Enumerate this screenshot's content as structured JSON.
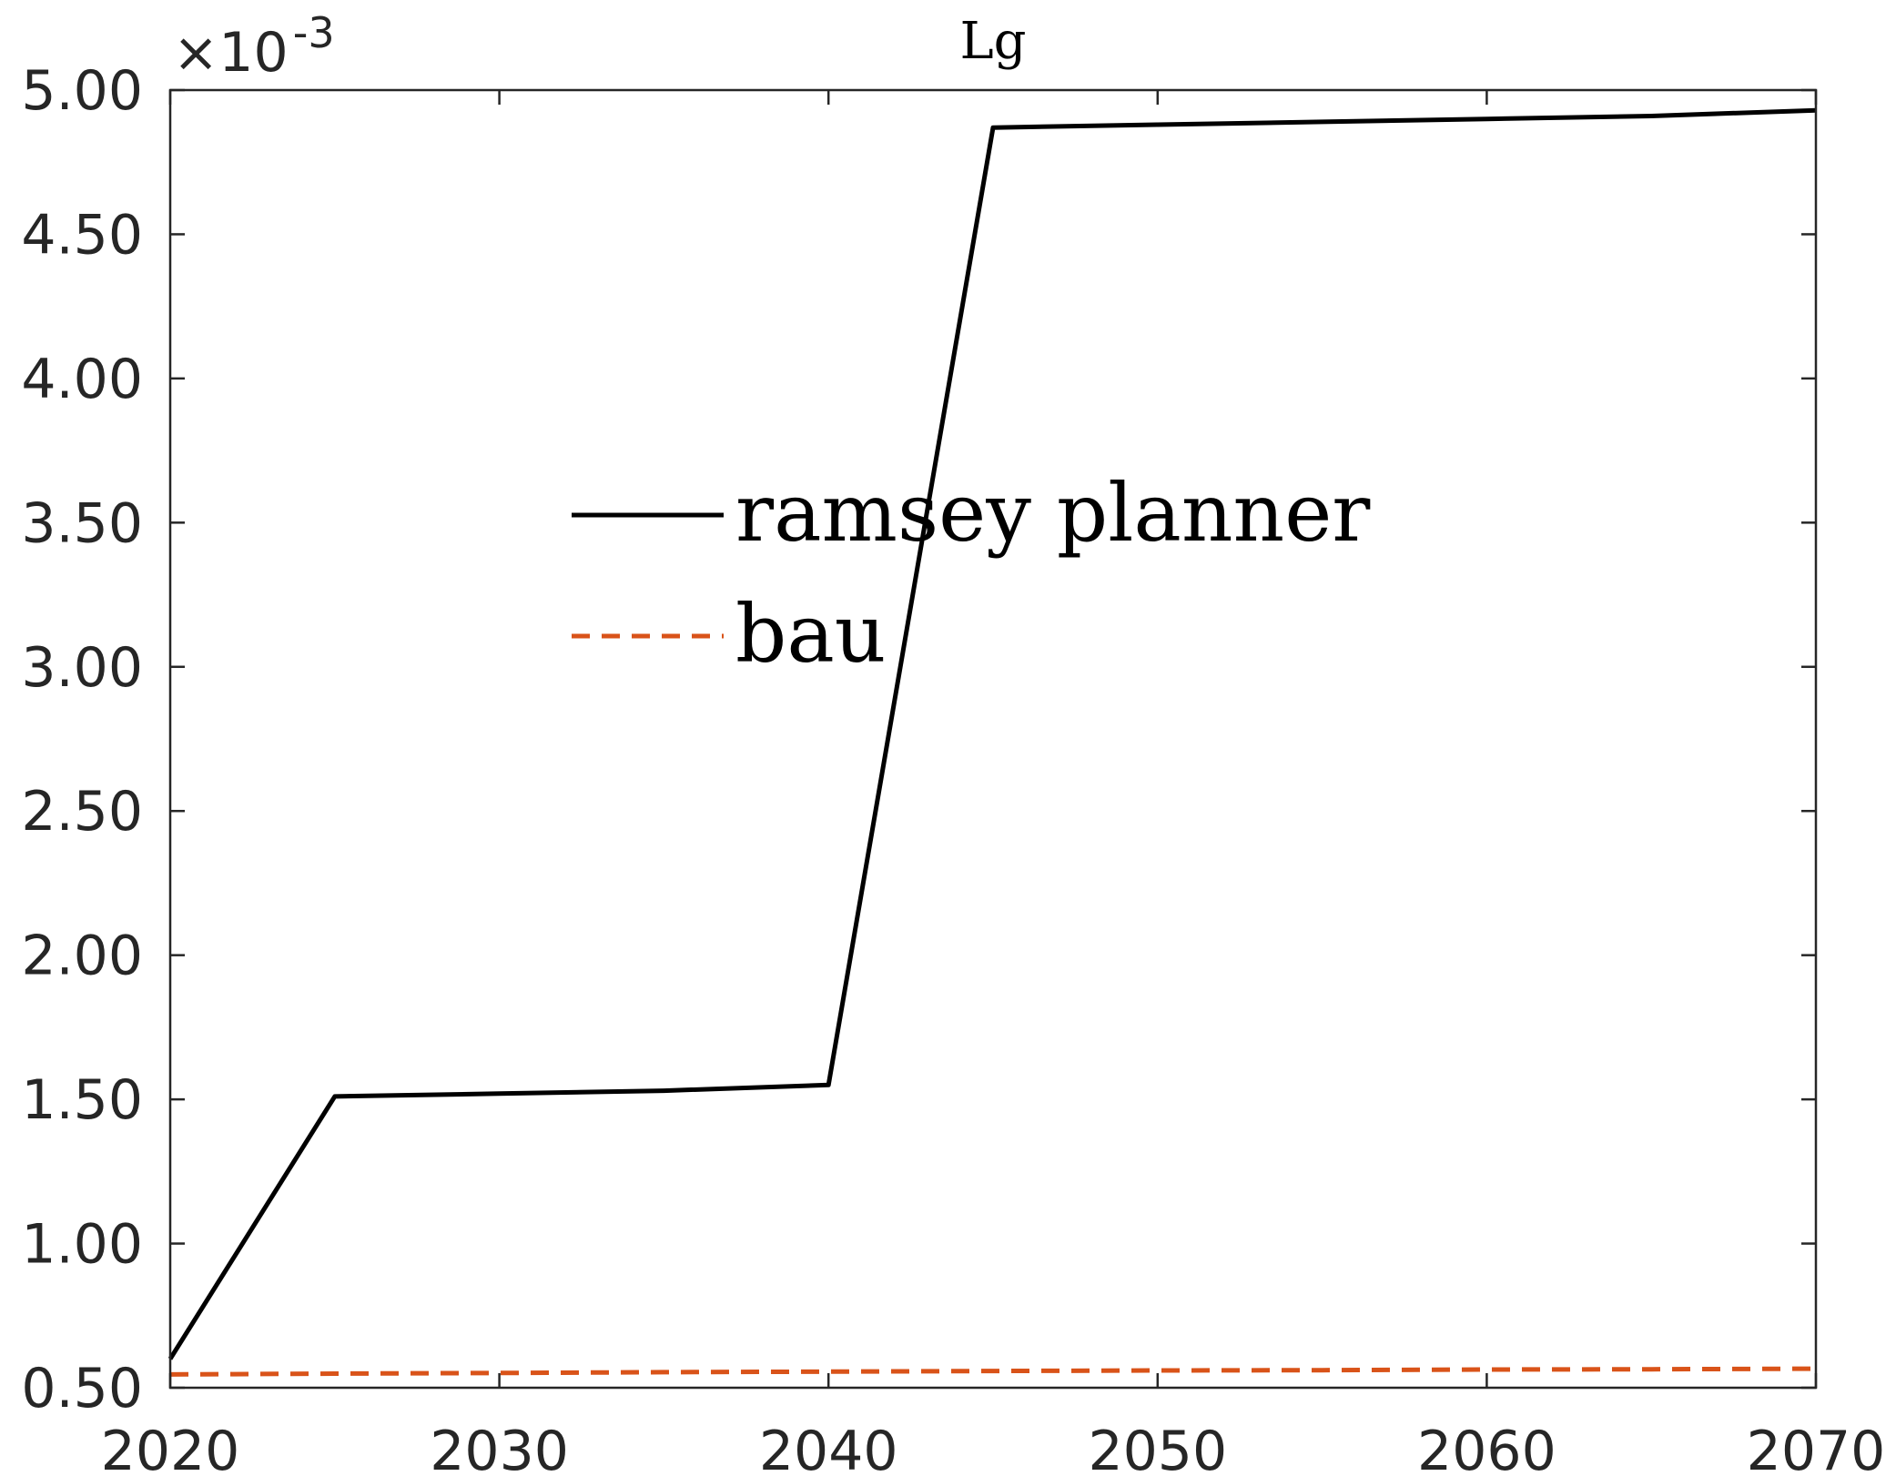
{
  "chart_data": {
    "type": "line",
    "title": "Lg",
    "xlabel": "",
    "ylabel": "",
    "exponent_base": "×10",
    "exponent_power": "-3",
    "xlim": [
      2020,
      2070
    ],
    "ylim": [
      0.5,
      5.0
    ],
    "x_ticks": [
      2020,
      2030,
      2040,
      2050,
      2060,
      2070
    ],
    "x_tick_labels": [
      "2020",
      "2030",
      "2040",
      "2050",
      "2060",
      "2070"
    ],
    "y_ticks": [
      0.5,
      1.0,
      1.5,
      2.0,
      2.5,
      3.0,
      3.5,
      4.0,
      4.5,
      5.0
    ],
    "y_tick_labels": [
      "0.50",
      "1.00",
      "1.50",
      "2.00",
      "2.50",
      "3.00",
      "3.50",
      "4.00",
      "4.50",
      "5.00"
    ],
    "grid": false,
    "legend_position": "center",
    "series": [
      {
        "name": "ramsey planner",
        "color": "#000000",
        "style": "solid",
        "x": [
          2020,
          2025,
          2030,
          2035,
          2040,
          2045,
          2050,
          2055,
          2060,
          2065,
          2070
        ],
        "y": [
          0.6,
          1.51,
          1.52,
          1.53,
          1.55,
          4.87,
          4.88,
          4.89,
          4.9,
          4.91,
          4.93
        ]
      },
      {
        "name": "bau",
        "color": "#D95319",
        "style": "dashed",
        "x": [
          2020,
          2025,
          2030,
          2035,
          2040,
          2045,
          2050,
          2055,
          2060,
          2065,
          2070
        ],
        "y": [
          0.546,
          0.549,
          0.551,
          0.554,
          0.556,
          0.558,
          0.56,
          0.561,
          0.563,
          0.564,
          0.566
        ]
      }
    ]
  }
}
